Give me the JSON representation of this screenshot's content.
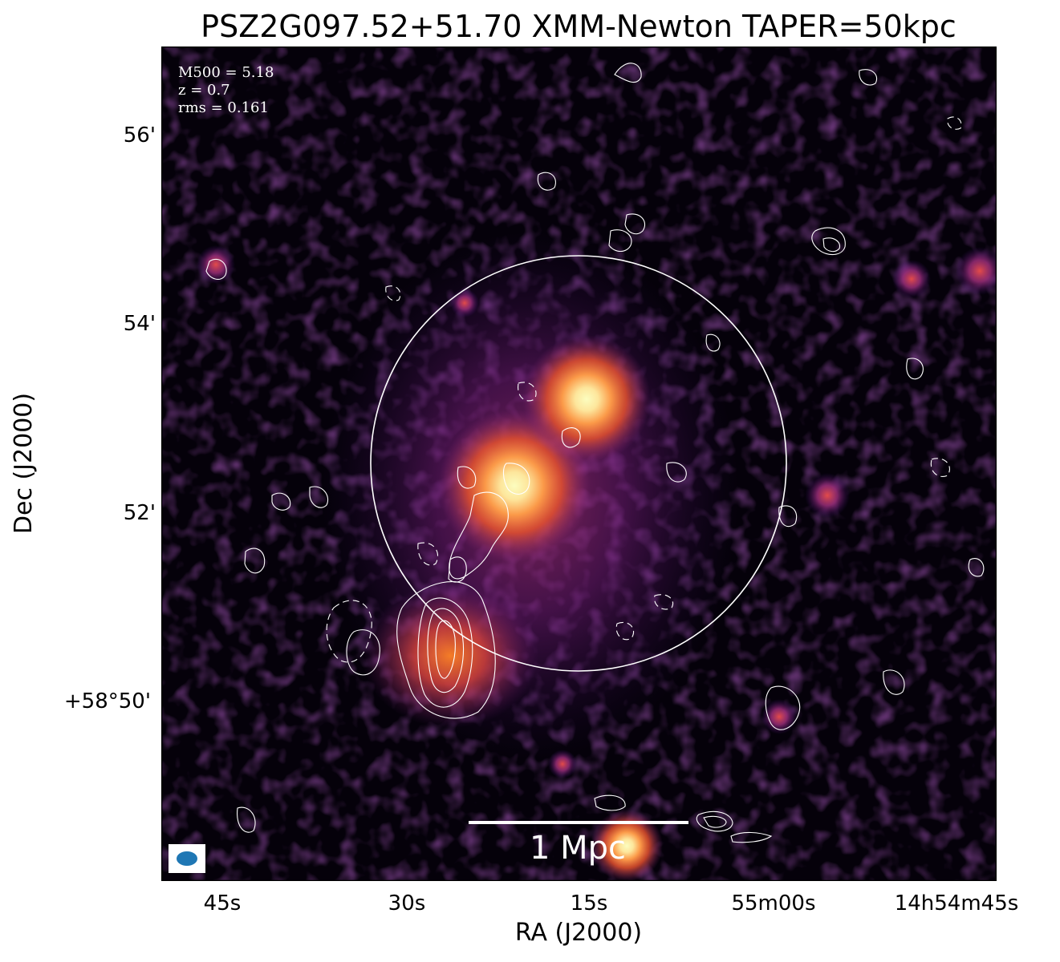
{
  "title": "PSZ2G097.52+51.70 XMM-Newton TAPER=50kpc",
  "xlabel": "RA (J2000)",
  "ylabel": "Dec (J2000)",
  "x_ticks": [
    "45s",
    "30s",
    "15s",
    "55m00s",
    "14h54m45s"
  ],
  "y_ticks": [
    "56'",
    "54'",
    "52'",
    "+58°50'"
  ],
  "info": {
    "mass": "M500 = 5.18",
    "redshift": "z = 0.7",
    "rms": "rms = 0.161"
  },
  "scalebar_label": "1 Mpc",
  "colors": {
    "background": "#05010a",
    "colormap": [
      "#000004",
      "#3b0f70",
      "#8c2981",
      "#de4968",
      "#fe9f6d",
      "#fcfdbf"
    ],
    "contour": "#ffffff",
    "beam": "#1f77b4"
  }
}
